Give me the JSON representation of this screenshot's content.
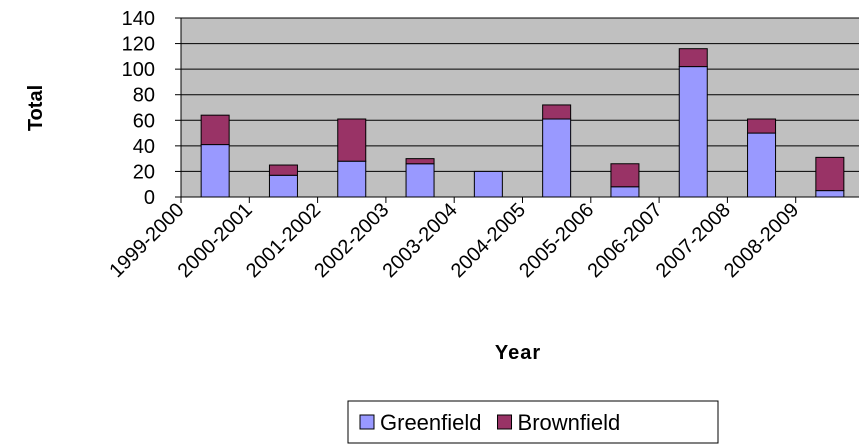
{
  "chart_data": {
    "type": "bar",
    "stacked": true,
    "categories": [
      "1999-2000",
      "2000-2001",
      "2001-2002",
      "2002-2003",
      "2003-2004",
      "2004-2005",
      "2005-2006",
      "2006-2007",
      "2007-2008",
      "2008-2009"
    ],
    "series": [
      {
        "name": "Greenfield",
        "color": "#9999ff",
        "values": [
          41,
          17,
          28,
          26,
          20,
          61,
          8,
          102,
          50,
          5
        ]
      },
      {
        "name": "Brownfield",
        "color": "#993366",
        "values": [
          23,
          8,
          33,
          4,
          0,
          11,
          18,
          14,
          11,
          26
        ]
      }
    ],
    "xlabel": "Year",
    "ylabel": "Total",
    "ylim": [
      0,
      140
    ],
    "yticks": [
      0,
      20,
      40,
      60,
      80,
      100,
      120,
      140
    ],
    "plot_background": "#c0c0c0",
    "grid": true,
    "legend_position": "bottom"
  }
}
